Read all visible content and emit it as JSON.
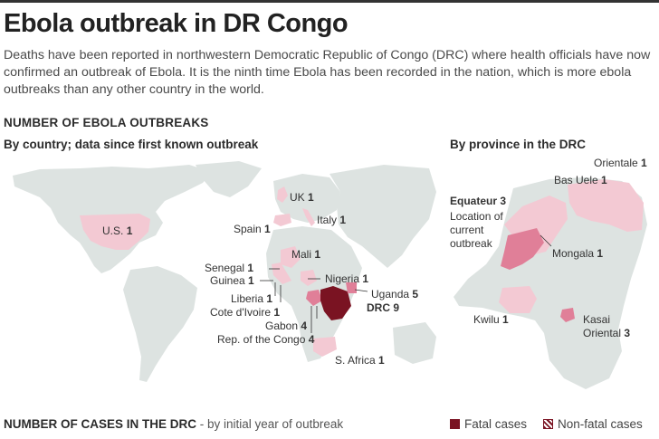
{
  "title": "Ebola outbreak in DR Congo",
  "intro": "Deaths have been reported in northwestern Democratic Republic of Congo (DRC) where health officials have now confirmed an outbreak of Ebola. It is the ninth time Ebola has been recorded in the nation, which is more ebola outbreaks than any other country in the world.",
  "section_outbreaks": "NUMBER OF EBOLA OUTBREAKS",
  "by_country": "By country; data since first known outbreak",
  "by_province": "By province in the DRC",
  "countries": [
    {
      "name": "UK",
      "count": "1"
    },
    {
      "name": "Spain",
      "count": "1"
    },
    {
      "name": "Italy",
      "count": "1"
    },
    {
      "name": "U.S.",
      "count": "1"
    },
    {
      "name": "Mali",
      "count": "1"
    },
    {
      "name": "Senegal",
      "count": "1"
    },
    {
      "name": "Guinea",
      "count": "1"
    },
    {
      "name": "Nigeria",
      "count": "1"
    },
    {
      "name": "Uganda",
      "count": "5"
    },
    {
      "name": "Liberia",
      "count": "1"
    },
    {
      "name": "Cote d'Ivoire",
      "count": "1"
    },
    {
      "name": "DRC",
      "count": "9"
    },
    {
      "name": "Gabon",
      "count": "4"
    },
    {
      "name": "Rep. of the Congo",
      "count": "4"
    },
    {
      "name": "S. Africa",
      "count": "1"
    }
  ],
  "provinces": [
    {
      "name": "Orientale",
      "count": "1"
    },
    {
      "name": "Bas Uele",
      "count": "1"
    },
    {
      "name": "Equateur",
      "count": "3"
    },
    {
      "name": "Mongala",
      "count": "1"
    },
    {
      "name": "Kwilu",
      "count": "1"
    },
    {
      "name": "Kasai Oriental",
      "count": "3"
    }
  ],
  "current_outbreak_note": "Location of current outbreak",
  "cases_title": "NUMBER OF CASES IN THE DRC",
  "cases_subtitle": " - by initial year of outbreak",
  "legend": {
    "fatal": "Fatal cases",
    "nonfatal": "Non-fatal cases"
  },
  "colors": {
    "land": "#dde3e1",
    "light_pink": "#f3c9d3",
    "mid_pink": "#e07f98",
    "dark_red": "#7a1322",
    "water": "#ffffff"
  }
}
